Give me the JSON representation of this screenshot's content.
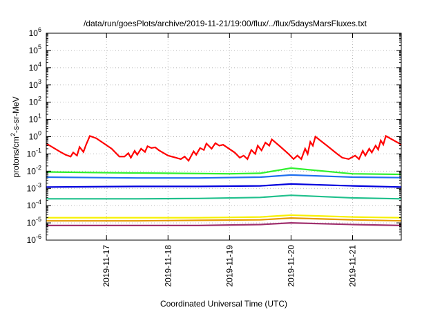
{
  "chart_data": {
    "type": "line",
    "title": "/data/run/goesPlots/archive/2019-11-21/19:00/flux/../flux/5daysMarsFluxes.txt",
    "xlabel": "Coordinated Universal Time (UTC)",
    "ylabel": {
      "base": "protons/cm",
      "sup": "2",
      "rest": "-s-sr-MeV"
    },
    "y_scale": "log",
    "ylim": [
      1e-06,
      1000000.0
    ],
    "xlim": [
      "2019-11-16 00:30",
      "2019-11-21 19:00"
    ],
    "grid": true,
    "legend": "none",
    "x_ticks": [
      {
        "date": "2019-11-17",
        "label": "2019-11-17"
      },
      {
        "date": "2019-11-18",
        "label": "2019-11-18"
      },
      {
        "date": "2019-11-19",
        "label": "2019-11-19"
      },
      {
        "date": "2019-11-20",
        "label": "2019-11-20"
      },
      {
        "date": "2019-11-21",
        "label": "2019-11-21"
      }
    ],
    "y_ticks": [
      {
        "value": 1e-06,
        "base": "10",
        "exp": "-6"
      },
      {
        "value": 1e-05,
        "base": "10",
        "exp": "-5"
      },
      {
        "value": 0.0001,
        "base": "10",
        "exp": "-4"
      },
      {
        "value": 0.001,
        "base": "10",
        "exp": "-3"
      },
      {
        "value": 0.01,
        "base": "10",
        "exp": "-2"
      },
      {
        "value": 0.1,
        "base": "10",
        "exp": "-1"
      },
      {
        "value": 1,
        "base": "10",
        "exp": "0"
      },
      {
        "value": 10,
        "base": "10",
        "exp": "1"
      },
      {
        "value": 100,
        "base": "10",
        "exp": "2"
      },
      {
        "value": 1000,
        "base": "10",
        "exp": "3"
      },
      {
        "value": 10000,
        "base": "10",
        "exp": "4"
      },
      {
        "value": 100000,
        "base": "10",
        "exp": "5"
      },
      {
        "value": 1000000,
        "base": "10",
        "exp": "6"
      }
    ],
    "series": [
      {
        "color": "#ff0000",
        "values": [
          [
            "2019-11-16 00:30",
            0.4
          ],
          [
            "2019-11-16 06:00",
            0.13
          ],
          [
            "2019-11-16 08:00",
            0.09
          ],
          [
            "2019-11-16 10:00",
            0.07
          ],
          [
            "2019-11-16 11:00",
            0.12
          ],
          [
            "2019-11-16 12:30",
            0.08
          ],
          [
            "2019-11-16 13:30",
            0.25
          ],
          [
            "2019-11-16 15:00",
            0.13
          ],
          [
            "2019-11-16 16:00",
            0.33
          ],
          [
            "2019-11-16 17:30",
            1.1
          ],
          [
            "2019-11-16 20:00",
            0.8
          ],
          [
            "2019-11-17 02:00",
            0.2
          ],
          [
            "2019-11-17 05:00",
            0.07
          ],
          [
            "2019-11-17 07:00",
            0.07
          ],
          [
            "2019-11-17 08:30",
            0.11
          ],
          [
            "2019-11-17 09:30",
            0.06
          ],
          [
            "2019-11-17 11:00",
            0.15
          ],
          [
            "2019-11-17 12:00",
            0.09
          ],
          [
            "2019-11-17 13:30",
            0.2
          ],
          [
            "2019-11-17 15:00",
            0.13
          ],
          [
            "2019-11-17 16:00",
            0.28
          ],
          [
            "2019-11-17 17:30",
            0.22
          ],
          [
            "2019-11-17 19:00",
            0.24
          ],
          [
            "2019-11-17 20:30",
            0.16
          ],
          [
            "2019-11-18 00:00",
            0.08
          ],
          [
            "2019-11-18 05:00",
            0.05
          ],
          [
            "2019-11-18 06:30",
            0.07
          ],
          [
            "2019-11-18 08:00",
            0.04
          ],
          [
            "2019-11-18 10:00",
            0.14
          ],
          [
            "2019-11-18 11:00",
            0.09
          ],
          [
            "2019-11-18 12:30",
            0.22
          ],
          [
            "2019-11-18 14:00",
            0.17
          ],
          [
            "2019-11-18 15:00",
            0.4
          ],
          [
            "2019-11-18 17:00",
            0.2
          ],
          [
            "2019-11-18 18:30",
            0.42
          ],
          [
            "2019-11-18 20:00",
            0.3
          ],
          [
            "2019-11-18 21:30",
            0.34
          ],
          [
            "2019-11-19 02:00",
            0.12
          ],
          [
            "2019-11-19 04:00",
            0.06
          ],
          [
            "2019-11-19 05:30",
            0.08
          ],
          [
            "2019-11-19 07:00",
            0.05
          ],
          [
            "2019-11-19 08:30",
            0.17
          ],
          [
            "2019-11-19 10:00",
            0.1
          ],
          [
            "2019-11-19 11:00",
            0.3
          ],
          [
            "2019-11-19 12:30",
            0.16
          ],
          [
            "2019-11-19 14:00",
            0.45
          ],
          [
            "2019-11-19 15:30",
            0.3
          ],
          [
            "2019-11-19 16:30",
            0.7
          ],
          [
            "2019-11-19 20:00",
            0.25
          ],
          [
            "2019-11-19 23:00",
            0.1
          ],
          [
            "2019-11-20 01:00",
            0.05
          ],
          [
            "2019-11-20 02:30",
            0.08
          ],
          [
            "2019-11-20 04:00",
            0.05
          ],
          [
            "2019-11-20 05:30",
            0.2
          ],
          [
            "2019-11-20 06:30",
            0.1
          ],
          [
            "2019-11-20 07:30",
            0.5
          ],
          [
            "2019-11-20 08:30",
            0.3
          ],
          [
            "2019-11-20 09:30",
            1.0
          ],
          [
            "2019-11-20 14:00",
            0.3
          ],
          [
            "2019-11-20 18:00",
            0.1
          ],
          [
            "2019-11-20 20:00",
            0.06
          ],
          [
            "2019-11-20 22:30",
            0.05
          ],
          [
            "2019-11-21 01:00",
            0.08
          ],
          [
            "2019-11-21 02:30",
            0.05
          ],
          [
            "2019-11-21 04:00",
            0.15
          ],
          [
            "2019-11-21 05:00",
            0.08
          ],
          [
            "2019-11-21 06:30",
            0.2
          ],
          [
            "2019-11-21 07:30",
            0.12
          ],
          [
            "2019-11-21 09:00",
            0.3
          ],
          [
            "2019-11-21 10:00",
            0.18
          ],
          [
            "2019-11-21 11:00",
            0.6
          ],
          [
            "2019-11-21 12:00",
            0.35
          ],
          [
            "2019-11-21 13:00",
            1.1
          ],
          [
            "2019-11-21 19:00",
            0.35
          ]
        ]
      },
      {
        "color": "#2ef02e",
        "values": [
          [
            "2019-11-16 00:30",
            0.009
          ],
          [
            "2019-11-17 02:00",
            0.008
          ],
          [
            "2019-11-18 00:00",
            0.0075
          ],
          [
            "2019-11-19 00:00",
            0.007
          ],
          [
            "2019-11-19 12:00",
            0.0075
          ],
          [
            "2019-11-20 00:00",
            0.015
          ],
          [
            "2019-11-21 00:00",
            0.007
          ],
          [
            "2019-11-21 19:00",
            0.0065
          ]
        ]
      },
      {
        "color": "#1e6ff0",
        "values": [
          [
            "2019-11-16 00:30",
            0.0045
          ],
          [
            "2019-11-17 12:00",
            0.004
          ],
          [
            "2019-11-18 12:00",
            0.004
          ],
          [
            "2019-11-19 12:00",
            0.0045
          ],
          [
            "2019-11-20 00:00",
            0.006
          ],
          [
            "2019-11-21 00:00",
            0.0045
          ],
          [
            "2019-11-21 19:00",
            0.0042
          ]
        ]
      },
      {
        "color": "#0000dd",
        "values": [
          [
            "2019-11-16 00:30",
            0.0012
          ],
          [
            "2019-11-17 12:00",
            0.0013
          ],
          [
            "2019-11-18 12:00",
            0.0013
          ],
          [
            "2019-11-19 12:00",
            0.0014
          ],
          [
            "2019-11-20 00:00",
            0.0018
          ],
          [
            "2019-11-21 00:00",
            0.0014
          ],
          [
            "2019-11-21 19:00",
            0.0012
          ]
        ]
      },
      {
        "color": "#1fc08c",
        "values": [
          [
            "2019-11-16 00:30",
            0.00025
          ],
          [
            "2019-11-17 12:00",
            0.00025
          ],
          [
            "2019-11-18 12:00",
            0.00026
          ],
          [
            "2019-11-19 12:00",
            0.0003
          ],
          [
            "2019-11-20 00:00",
            0.0004
          ],
          [
            "2019-11-21 00:00",
            0.00028
          ],
          [
            "2019-11-21 19:00",
            0.00025
          ]
        ]
      },
      {
        "color": "#f7f000",
        "values": [
          [
            "2019-11-16 00:30",
            2e-05
          ],
          [
            "2019-11-17 12:00",
            2e-05
          ],
          [
            "2019-11-18 12:00",
            2e-05
          ],
          [
            "2019-11-19 12:00",
            2.2e-05
          ],
          [
            "2019-11-20 00:00",
            2.8e-05
          ],
          [
            "2019-11-21 00:00",
            2.2e-05
          ],
          [
            "2019-11-21 19:00",
            2e-05
          ]
        ]
      },
      {
        "color": "#e69a00",
        "values": [
          [
            "2019-11-16 00:30",
            1.3e-05
          ],
          [
            "2019-11-17 12:00",
            1.3e-05
          ],
          [
            "2019-11-18 12:00",
            1.4e-05
          ],
          [
            "2019-11-19 12:00",
            1.5e-05
          ],
          [
            "2019-11-20 00:00",
            1.9e-05
          ],
          [
            "2019-11-21 00:00",
            1.5e-05
          ],
          [
            "2019-11-21 19:00",
            1.3e-05
          ]
        ]
      },
      {
        "color": "#a0306e",
        "values": [
          [
            "2019-11-16 00:30",
            7e-06
          ],
          [
            "2019-11-17 12:00",
            7e-06
          ],
          [
            "2019-11-18 12:00",
            7e-06
          ],
          [
            "2019-11-19 12:00",
            8e-06
          ],
          [
            "2019-11-20 00:00",
            1e-05
          ],
          [
            "2019-11-21 00:00",
            8e-06
          ],
          [
            "2019-11-21 19:00",
            7e-06
          ]
        ]
      }
    ]
  }
}
